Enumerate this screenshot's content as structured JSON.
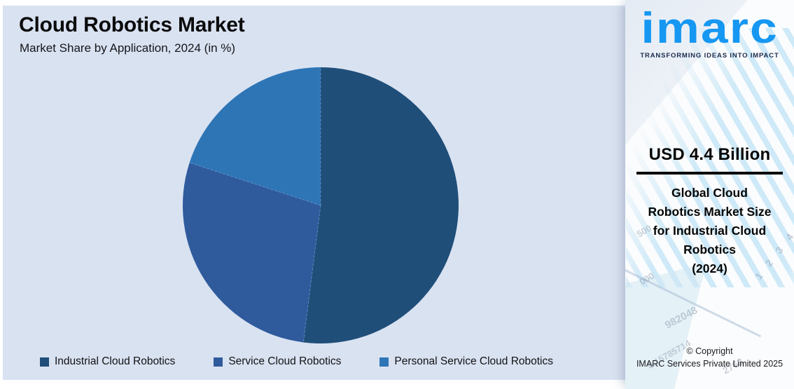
{
  "page": {
    "panel_background": "#d9e2f1"
  },
  "chart_data": {
    "type": "pie",
    "title": "Cloud Robotics Market",
    "subtitle": "Market Share by Application, 2024 (in %)",
    "labels": [
      "Industrial Cloud Robotics",
      "Service Cloud Robotics",
      "Personal Service Cloud Robotics"
    ],
    "values": [
      52,
      28,
      20
    ],
    "values_note": "percent share, estimated from slice angles (no data labels shown in image)",
    "colors": [
      "#1F4E79",
      "#2F5B9D",
      "#2E75B6"
    ],
    "start_angle_deg": 0,
    "direction": "clockwise",
    "legend_position": "bottom"
  },
  "sidebar": {
    "logo": {
      "text": "imarc",
      "tagline": "TRANSFORMING IDEAS INTO IMPACT",
      "brand_color": "#1697F2",
      "tagline_color": "#1B2B4D"
    },
    "market_size": {
      "value": "USD 4.4 Billion",
      "description_lines": [
        "Global Cloud",
        "Robotics Market Size",
        "for Industrial Cloud",
        "Robotics",
        "(2024)"
      ]
    },
    "copyright": {
      "line1": "© Copyright",
      "line2": "IMARC Services Private Limited 2025"
    },
    "watermarks": [
      "982048",
      "0.15785714",
      "2768",
      "1 2 3 4",
      "500",
      "000"
    ]
  }
}
